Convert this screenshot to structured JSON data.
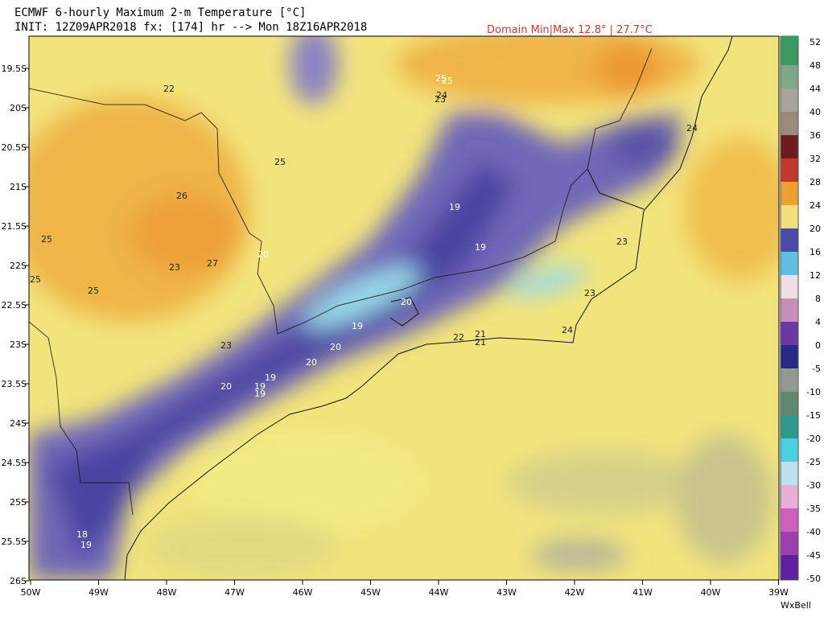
{
  "header": {
    "title": "ECMWF 6-hourly Maximum 2-m Temperature [°C]",
    "init": "INIT: 12Z09APR2018 fx: [174] hr --> Mon 18Z16APR2018",
    "domain": "Domain Min|Max 12.8° | 27.7°C"
  },
  "map": {
    "lat_labels": [
      "19.5S",
      "20S",
      "20.5S",
      "21S",
      "21.5S",
      "22S",
      "22.5S",
      "23S",
      "23.5S",
      "24S",
      "24.5S",
      "25S",
      "25.5S",
      "26S"
    ],
    "lon_labels": [
      "50W",
      "49W",
      "48W",
      "47W",
      "46W",
      "45W",
      "44W",
      "43W",
      "42W",
      "41W",
      "40W",
      "39W"
    ],
    "point_labels": [
      "22",
      "25",
      "25",
      "24",
      "23",
      "25",
      "26",
      "25",
      "19",
      "19",
      "23",
      "23",
      "27",
      "20",
      "25",
      "25",
      "20",
      "23",
      "19",
      "20",
      "24",
      "23",
      "22",
      "21",
      "21",
      "20",
      "19",
      "19",
      "19",
      "20",
      "18",
      "19",
      "24"
    ]
  },
  "colorbar": {
    "ticks": [
      52,
      48,
      44,
      40,
      36,
      32,
      28,
      24,
      20,
      16,
      12,
      8,
      4,
      0,
      -5,
      -10,
      -15,
      -20,
      -25,
      -30,
      -35,
      -40,
      -45,
      -50
    ],
    "colors": [
      "#3a9a62",
      "#7fa88a",
      "#a8a49a",
      "#9a8a7c",
      "#6e1c1c",
      "#c0392b",
      "#f0a030",
      "#f3e07a",
      "#4a4aa8",
      "#5fc0e0",
      "#f0dde6",
      "#c890b8",
      "#6a3aa0",
      "#28288a",
      "#909a90",
      "#5d8a6e",
      "#2e9a8e",
      "#4ad0e0",
      "#c0e0f0",
      "#e8b0d8",
      "#d060c0",
      "#9a40b0",
      "#6020a0"
    ]
  },
  "footer": {
    "brand": "WxBell"
  }
}
